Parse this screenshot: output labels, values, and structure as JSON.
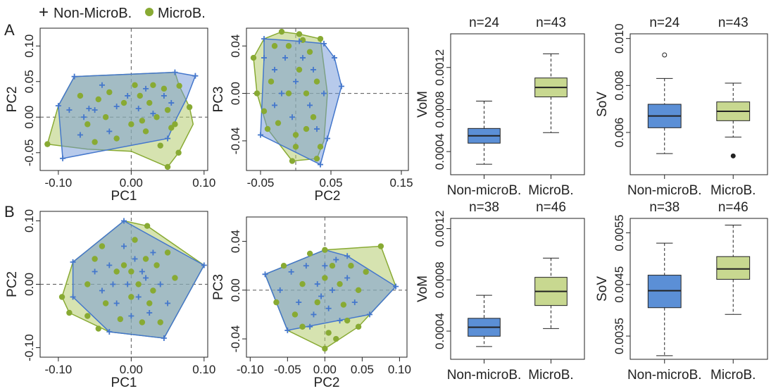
{
  "colors": {
    "non_micro": "#4477CC",
    "micro": "#88AA33",
    "box_non_micro": "#5B8FD6",
    "box_micro": "#C8D890",
    "hull_non_micro_fill": "#6F95D8",
    "hull_micro_fill": "#B5CC70",
    "overlap_fill": "#3F7878"
  },
  "legend": {
    "non_micro_symbol": "+",
    "non_micro_label": "Non-MicroB.",
    "micro_label": "MicroB."
  },
  "panel_labels": [
    "A",
    "B"
  ],
  "chart_data": [
    {
      "id": "A-pc1-pc2",
      "type": "scatter",
      "row": 0,
      "xlabel": "PC1",
      "ylabel": "PC2",
      "xlim": [
        -0.125,
        0.105
      ],
      "ylim": [
        -0.075,
        0.125
      ],
      "xticks": [
        -0.1,
        0.0,
        0.1
      ],
      "xtick_labels": [
        "-0.10",
        "0.00",
        "0.10"
      ],
      "yticks": [
        -0.05,
        0.0,
        0.05,
        0.1
      ],
      "ytick_labels": [
        "-0.05",
        "0.00",
        "0.05",
        "0.10"
      ],
      "hull_non_micro": [
        [
          -0.1,
          0.016
        ],
        [
          -0.078,
          0.057
        ],
        [
          0.06,
          0.063
        ],
        [
          0.088,
          0.058
        ],
        [
          0.076,
          0.026
        ],
        [
          0.063,
          0.0
        ],
        [
          0.05,
          -0.03
        ],
        [
          -0.094,
          -0.058
        ]
      ],
      "hull_micro": [
        [
          -0.115,
          -0.038
        ],
        [
          -0.1,
          0.016
        ],
        [
          -0.078,
          0.057
        ],
        [
          0.06,
          0.063
        ],
        [
          0.066,
          0.044
        ],
        [
          0.08,
          0.014
        ],
        [
          0.085,
          -0.01
        ],
        [
          0.065,
          -0.05
        ],
        [
          0.05,
          -0.07
        ],
        [
          0.0,
          -0.048
        ],
        [
          -0.06,
          -0.045
        ]
      ],
      "points_non_micro": [
        [
          -0.1,
          0.016
        ],
        [
          -0.078,
          0.057
        ],
        [
          0.06,
          0.063
        ],
        [
          0.088,
          0.058
        ],
        [
          0.05,
          -0.03
        ],
        [
          -0.094,
          -0.058
        ],
        [
          -0.085,
          0.01
        ],
        [
          -0.065,
          0.0
        ],
        [
          -0.05,
          0.01
        ],
        [
          -0.03,
          -0.02
        ],
        [
          -0.02,
          0.015
        ],
        [
          -0.005,
          0.03
        ],
        [
          0.01,
          0.012
        ],
        [
          0.03,
          0.005
        ],
        [
          0.045,
          0.03
        ],
        [
          -0.07,
          -0.025
        ],
        [
          -0.04,
          0.045
        ],
        [
          0.02,
          0.04
        ],
        [
          0.055,
          0.02
        ],
        [
          -0.058,
          0.012
        ]
      ],
      "points_micro": [
        [
          -0.115,
          -0.038
        ],
        [
          0.05,
          -0.07
        ],
        [
          0.065,
          -0.05
        ],
        [
          0.08,
          0.014
        ],
        [
          0.066,
          0.044
        ],
        [
          -0.07,
          0.03
        ],
        [
          -0.06,
          -0.01
        ],
        [
          -0.045,
          0.025
        ],
        [
          -0.035,
          0.0
        ],
        [
          -0.02,
          -0.03
        ],
        [
          -0.01,
          0.02
        ],
        [
          0.0,
          -0.01
        ],
        [
          0.012,
          0.03
        ],
        [
          0.02,
          -0.02
        ],
        [
          0.03,
          0.045
        ],
        [
          0.035,
          0.0
        ],
        [
          0.04,
          -0.04
        ],
        [
          0.05,
          0.01
        ],
        [
          0.055,
          -0.015
        ],
        [
          -0.03,
          0.035
        ],
        [
          0.015,
          -0.005
        ],
        [
          0.025,
          0.02
        ],
        [
          -0.05,
          -0.035
        ],
        [
          0.045,
          0.04
        ],
        [
          0.005,
          0.045
        ],
        [
          0.06,
          -0.01
        ]
      ]
    },
    {
      "id": "A-pc2-pc3",
      "type": "scatter",
      "row": 0,
      "xlabel": "PC2",
      "ylabel": "PC3",
      "xlim": [
        -0.07,
        0.16
      ],
      "ylim": [
        -0.065,
        0.055
      ],
      "xticks": [
        -0.05,
        0.05,
        0.15
      ],
      "xtick_labels": [
        "-0.05",
        "0.05",
        "0.15"
      ],
      "yticks": [
        -0.04,
        0.0,
        0.04
      ],
      "ytick_labels": [
        "-0.04",
        "0.00",
        "0.04"
      ],
      "hull_non_micro": [
        [
          -0.045,
          0.046
        ],
        [
          0.005,
          0.044
        ],
        [
          0.04,
          0.042
        ],
        [
          0.055,
          0.03
        ],
        [
          0.065,
          0.006
        ],
        [
          0.045,
          -0.038
        ],
        [
          0.035,
          -0.06
        ],
        [
          -0.05,
          -0.035
        ],
        [
          -0.045,
          0.03
        ]
      ],
      "hull_micro": [
        [
          -0.06,
          0.03
        ],
        [
          -0.045,
          0.046
        ],
        [
          -0.02,
          0.052
        ],
        [
          0.005,
          0.05
        ],
        [
          0.035,
          0.046
        ],
        [
          0.045,
          0.0
        ],
        [
          0.04,
          -0.04
        ],
        [
          0.03,
          -0.055
        ],
        [
          -0.005,
          -0.057
        ],
        [
          -0.04,
          -0.03
        ],
        [
          -0.055,
          0.0
        ]
      ],
      "points_non_micro": [
        [
          -0.045,
          0.046
        ],
        [
          0.005,
          0.044
        ],
        [
          0.04,
          0.042
        ],
        [
          0.055,
          0.03
        ],
        [
          0.065,
          0.006
        ],
        [
          0.045,
          -0.038
        ],
        [
          0.035,
          -0.06
        ],
        [
          -0.05,
          -0.035
        ],
        [
          -0.045,
          0.03
        ],
        [
          -0.03,
          0.02
        ],
        [
          -0.02,
          0.0
        ],
        [
          -0.015,
          0.03
        ],
        [
          -0.005,
          -0.02
        ],
        [
          0.0,
          0.01
        ],
        [
          0.01,
          0.03
        ],
        [
          0.02,
          -0.01
        ],
        [
          0.025,
          0.02
        ],
        [
          0.03,
          -0.03
        ],
        [
          0.04,
          0.0
        ],
        [
          -0.03,
          -0.01
        ]
      ],
      "points_micro": [
        [
          -0.06,
          0.03
        ],
        [
          -0.02,
          0.052
        ],
        [
          0.005,
          0.05
        ],
        [
          0.035,
          0.046
        ],
        [
          -0.005,
          -0.057
        ],
        [
          -0.055,
          0.0
        ],
        [
          -0.04,
          -0.03
        ],
        [
          0.03,
          -0.055
        ],
        [
          -0.035,
          0.01
        ],
        [
          -0.025,
          -0.025
        ],
        [
          -0.01,
          0.04
        ],
        [
          -0.01,
          0.0
        ],
        [
          0.0,
          -0.035
        ],
        [
          0.005,
          0.02
        ],
        [
          0.015,
          0.0
        ],
        [
          0.02,
          0.035
        ],
        [
          0.025,
          -0.02
        ],
        [
          0.03,
          0.01
        ],
        [
          0.0,
          -0.045
        ],
        [
          -0.03,
          0.04
        ],
        [
          0.015,
          -0.03
        ],
        [
          0.035,
          -0.045
        ],
        [
          -0.045,
          -0.015
        ],
        [
          0.01,
          0.045
        ]
      ]
    },
    {
      "id": "A-vom",
      "type": "box",
      "row": 0,
      "ylabel": "VoM",
      "categories": [
        "Non-microB.",
        "MicroB."
      ],
      "n_labels": [
        "n=24",
        "n=43"
      ],
      "ylim": [
        0.00018,
        0.00152
      ],
      "yticks": [
        0.0004,
        0.0008,
        0.0012
      ],
      "ytick_labels": [
        "0.0004",
        "0.0008",
        "0.0012"
      ],
      "boxes": [
        {
          "min": 0.00028,
          "q1": 0.00048,
          "median": 0.00055,
          "q3": 0.00062,
          "max": 0.00088,
          "outliers": []
        },
        {
          "min": 0.00058,
          "q1": 0.00092,
          "median": 0.00101,
          "q3": 0.0011,
          "max": 0.00133,
          "outliers": []
        }
      ]
    },
    {
      "id": "A-sov",
      "type": "box",
      "row": 0,
      "ylabel": "SoV",
      "categories": [
        "Non-microB.",
        "MicroB."
      ],
      "n_labels": [
        "n=24",
        "n=43"
      ],
      "ylim": [
        0.0042,
        0.0102
      ],
      "yticks": [
        0.006,
        0.008,
        0.01
      ],
      "ytick_labels": [
        "0.006",
        "0.008",
        "0.010"
      ],
      "boxes": [
        {
          "min": 0.0051,
          "q1": 0.0062,
          "median": 0.0067,
          "q3": 0.0072,
          "max": 0.0083,
          "outliers": [
            0.0093
          ]
        },
        {
          "min": 0.0058,
          "q1": 0.0065,
          "median": 0.0069,
          "q3": 0.0073,
          "max": 0.0081,
          "outliers": [
            0.005
          ]
        }
      ]
    },
    {
      "id": "B-pc1-pc2",
      "type": "scatter",
      "row": 1,
      "xlabel": "PC1",
      "ylabel": "PC2",
      "xlim": [
        -0.125,
        0.105
      ],
      "ylim": [
        -0.115,
        0.115
      ],
      "xticks": [
        -0.1,
        0.0,
        0.1
      ],
      "xtick_labels": [
        "-0.10",
        "0.00",
        "0.10"
      ],
      "yticks": [
        -0.1,
        0.0,
        0.1
      ],
      "ytick_labels": [
        "-0.10",
        "0.00",
        "0.10"
      ],
      "hull_non_micro": [
        [
          -0.01,
          0.1
        ],
        [
          0.1,
          0.03
        ],
        [
          0.045,
          -0.085
        ],
        [
          -0.03,
          -0.075
        ],
        [
          -0.08,
          -0.02
        ],
        [
          -0.08,
          0.035
        ]
      ],
      "hull_micro": [
        [
          -0.01,
          0.1
        ],
        [
          0.022,
          0.092
        ],
        [
          0.1,
          0.03
        ],
        [
          0.045,
          -0.085
        ],
        [
          -0.03,
          -0.075
        ],
        [
          -0.085,
          -0.045
        ],
        [
          -0.095,
          -0.02
        ],
        [
          -0.08,
          0.035
        ]
      ],
      "points_non_micro": [
        [
          -0.01,
          0.1
        ],
        [
          0.1,
          0.03
        ],
        [
          0.045,
          -0.085
        ],
        [
          -0.03,
          -0.075
        ],
        [
          -0.08,
          -0.02
        ],
        [
          -0.08,
          0.035
        ],
        [
          -0.05,
          0.02
        ],
        [
          -0.04,
          -0.01
        ],
        [
          -0.03,
          0.03
        ],
        [
          -0.02,
          -0.03
        ],
        [
          -0.01,
          0.06
        ],
        [
          -0.005,
          0.0
        ],
        [
          0.005,
          0.04
        ],
        [
          0.01,
          -0.02
        ],
        [
          0.02,
          0.01
        ],
        [
          0.025,
          -0.045
        ],
        [
          0.03,
          0.05
        ],
        [
          0.04,
          0.0
        ],
        [
          0.05,
          -0.03
        ],
        [
          -0.025,
          0.0
        ],
        [
          0.015,
          0.02
        ],
        [
          0.0,
          -0.05
        ]
      ],
      "points_micro": [
        [
          0.022,
          0.092
        ],
        [
          -0.085,
          -0.045
        ],
        [
          -0.095,
          -0.02
        ],
        [
          -0.06,
          -0.05
        ],
        [
          -0.05,
          0.04
        ],
        [
          -0.04,
          0.06
        ],
        [
          -0.035,
          -0.03
        ],
        [
          -0.02,
          0.02
        ],
        [
          -0.015,
          -0.055
        ],
        [
          -0.01,
          0.03
        ],
        [
          0.0,
          -0.02
        ],
        [
          0.005,
          0.07
        ],
        [
          0.01,
          0.0
        ],
        [
          0.015,
          -0.06
        ],
        [
          0.02,
          0.04
        ],
        [
          0.03,
          -0.01
        ],
        [
          0.035,
          0.03
        ],
        [
          0.04,
          -0.06
        ],
        [
          0.06,
          0.01
        ],
        [
          -0.06,
          0.0
        ],
        [
          0.0,
          0.02
        ],
        [
          0.025,
          -0.03
        ],
        [
          -0.045,
          -0.07
        ],
        [
          0.05,
          0.05
        ]
      ]
    },
    {
      "id": "B-pc2-pc3",
      "type": "scatter",
      "row": 1,
      "xlabel": "PC2",
      "ylabel": "PC3",
      "xlim": [
        -0.105,
        0.11
      ],
      "ylim": [
        -0.055,
        0.06
      ],
      "xticks": [
        -0.1,
        -0.05,
        0.0,
        0.05,
        0.1
      ],
      "xtick_labels": [
        "-0.10",
        "-0.05",
        "0.00",
        "0.05",
        "0.10"
      ],
      "yticks": [
        -0.04,
        0.0,
        0.04
      ],
      "ytick_labels": [
        "-0.04",
        "0.00",
        "0.04"
      ],
      "hull_non_micro": [
        [
          -0.08,
          0.013
        ],
        [
          0.0,
          0.033
        ],
        [
          0.03,
          0.028
        ],
        [
          0.095,
          0.003
        ],
        [
          0.06,
          -0.02
        ],
        [
          -0.05,
          -0.033
        ]
      ],
      "hull_micro": [
        [
          -0.08,
          0.013
        ],
        [
          0.0,
          0.033
        ],
        [
          0.075,
          0.036
        ],
        [
          0.095,
          0.003
        ],
        [
          0.045,
          -0.03
        ],
        [
          0.0,
          -0.048
        ],
        [
          -0.05,
          -0.033
        ]
      ],
      "points_non_micro": [
        [
          -0.08,
          0.013
        ],
        [
          0.03,
          0.028
        ],
        [
          0.095,
          0.003
        ],
        [
          0.06,
          -0.02
        ],
        [
          -0.05,
          -0.033
        ],
        [
          -0.06,
          0.0
        ],
        [
          -0.045,
          0.015
        ],
        [
          -0.035,
          -0.01
        ],
        [
          -0.025,
          0.02
        ],
        [
          -0.015,
          -0.02
        ],
        [
          -0.01,
          0.005
        ],
        [
          0.0,
          0.02
        ],
        [
          0.005,
          -0.015
        ],
        [
          0.01,
          0.0
        ],
        [
          0.015,
          0.025
        ],
        [
          0.02,
          -0.025
        ],
        [
          0.03,
          0.01
        ],
        [
          0.04,
          -0.01
        ],
        [
          -0.02,
          -0.03
        ],
        [
          -0.005,
          -0.005
        ]
      ],
      "points_micro": [
        [
          0.0,
          0.033
        ],
        [
          0.075,
          0.036
        ],
        [
          0.045,
          -0.03
        ],
        [
          0.0,
          -0.048
        ],
        [
          -0.055,
          0.02
        ],
        [
          -0.04,
          -0.02
        ],
        [
          -0.03,
          0.005
        ],
        [
          -0.02,
          0.03
        ],
        [
          -0.01,
          -0.01
        ],
        [
          0.0,
          0.01
        ],
        [
          0.005,
          -0.035
        ],
        [
          0.01,
          0.02
        ],
        [
          0.02,
          0.005
        ],
        [
          0.025,
          -0.012
        ],
        [
          0.035,
          0.02
        ],
        [
          0.045,
          0.0
        ],
        [
          0.055,
          0.015
        ],
        [
          -0.03,
          -0.03
        ],
        [
          0.015,
          -0.04
        ],
        [
          0.03,
          -0.025
        ],
        [
          -0.065,
          -0.01
        ]
      ]
    },
    {
      "id": "B-vom",
      "type": "box",
      "row": 1,
      "ylabel": "VoM",
      "categories": [
        "Non-microB.",
        "MicroB."
      ],
      "n_labels": [
        "n=38",
        "n=46"
      ],
      "ylim": [
        0.00018,
        0.00128
      ],
      "yticks": [
        0.0004,
        0.0008,
        0.0012
      ],
      "ytick_labels": [
        "0.0004",
        "0.0008",
        "0.0012"
      ],
      "boxes": [
        {
          "min": 0.00028,
          "q1": 0.00036,
          "median": 0.00043,
          "q3": 0.0005,
          "max": 0.00068,
          "outliers": []
        },
        {
          "min": 0.00042,
          "q1": 0.0006,
          "median": 0.00071,
          "q3": 0.00082,
          "max": 0.00097,
          "outliers": []
        }
      ]
    },
    {
      "id": "B-sov",
      "type": "box",
      "row": 1,
      "ylabel": "SoV",
      "categories": [
        "Non-microB.",
        "MicroB."
      ],
      "n_labels": [
        "n=38",
        "n=46"
      ],
      "ylim": [
        0.00305,
        0.00578
      ],
      "yticks": [
        0.0035,
        0.0045,
        0.0055
      ],
      "ytick_labels": [
        "0.0035",
        "0.0045",
        "0.0055"
      ],
      "boxes": [
        {
          "min": 0.00312,
          "q1": 0.00405,
          "median": 0.00438,
          "q3": 0.00468,
          "max": 0.0053,
          "outliers": []
        },
        {
          "min": 0.00392,
          "q1": 0.0046,
          "median": 0.0048,
          "q3": 0.00504,
          "max": 0.00565,
          "outliers": []
        }
      ]
    }
  ]
}
